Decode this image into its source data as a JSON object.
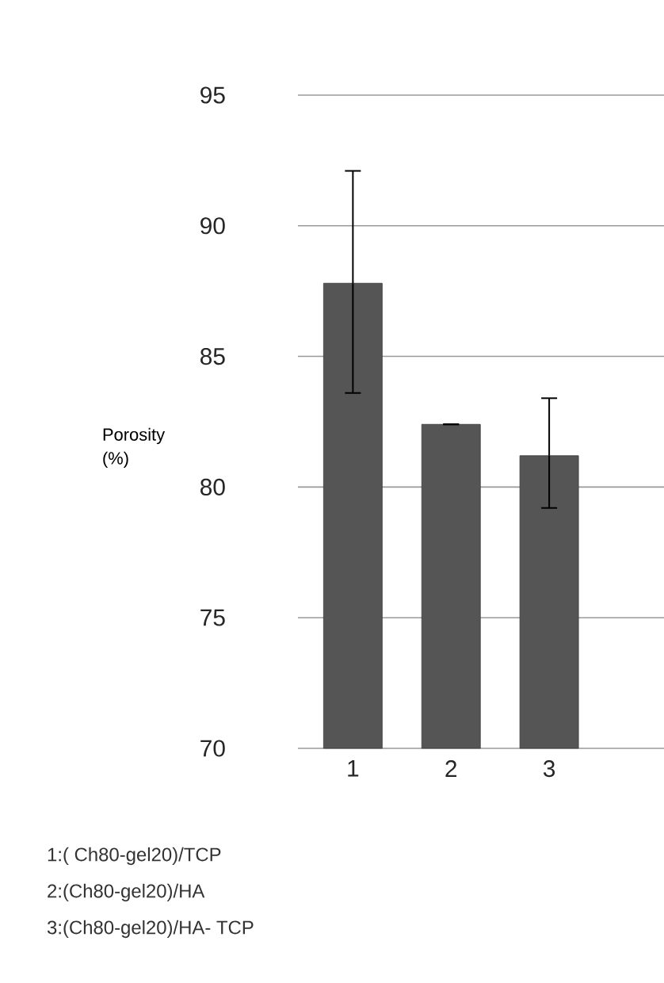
{
  "chart_data": {
    "type": "bar",
    "ylabel": "Porosity (%)",
    "categories": [
      "1",
      "2",
      "3"
    ],
    "values": [
      87.8,
      82.4,
      81.2
    ],
    "errors": [
      [
        83.6,
        92.1
      ],
      0,
      [
        79.2,
        83.4
      ]
    ],
    "color": "#555555",
    "ylim": [
      70,
      95
    ],
    "yticks": [
      70,
      75,
      80,
      85,
      90,
      95
    ],
    "grid": "y",
    "annotations": [
      "1:( Ch80-gel20)/TCP",
      "2:(Ch80-gel20)/HA",
      "3:(Ch80-gel20)/HA- TCP"
    ]
  }
}
